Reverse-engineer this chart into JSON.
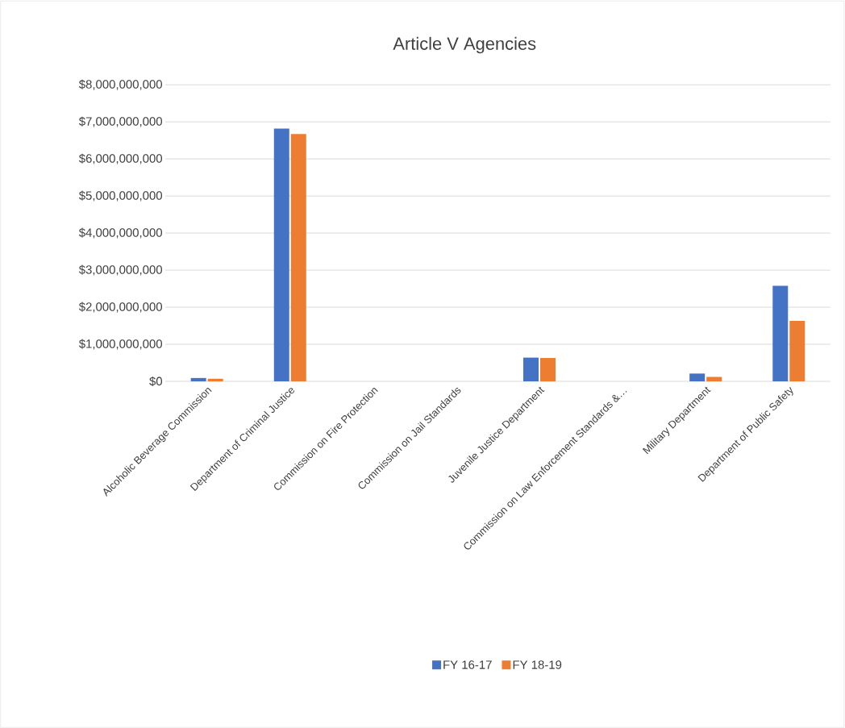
{
  "chart_data": {
    "type": "bar",
    "title": "Article V Agencies",
    "categories": [
      "Alcoholic Beverage Commission",
      "Department of Criminal Justice",
      "Commission on Fire Protection",
      "Commission on Jail Standards",
      "Juvenile Justice Department",
      "Commission on Law Enforcement Standards &…",
      "Military Department",
      "Department of Public Safety"
    ],
    "series": [
      {
        "name": "FY 16-17",
        "color": "#4472c4",
        "values": [
          90000000,
          6820000000,
          0,
          0,
          640000000,
          0,
          210000000,
          2580000000
        ]
      },
      {
        "name": "FY 18-19",
        "color": "#ed7d31",
        "values": [
          70000000,
          6670000000,
          0,
          0,
          630000000,
          0,
          120000000,
          1630000000
        ]
      }
    ],
    "ylim": [
      0,
      8000000000
    ],
    "yticks": [
      {
        "value": 0,
        "label": "$0"
      },
      {
        "value": 1000000000,
        "label": "$1,000,000,000"
      },
      {
        "value": 2000000000,
        "label": "$2,000,000,000"
      },
      {
        "value": 3000000000,
        "label": "$3,000,000,000"
      },
      {
        "value": 4000000000,
        "label": "$4,000,000,000"
      },
      {
        "value": 5000000000,
        "label": "$5,000,000,000"
      },
      {
        "value": 6000000000,
        "label": "$6,000,000,000"
      },
      {
        "value": 7000000000,
        "label": "$7,000,000,000"
      },
      {
        "value": 8000000000,
        "label": "$8,000,000,000"
      }
    ],
    "grid": "y",
    "legend": "bottom"
  }
}
